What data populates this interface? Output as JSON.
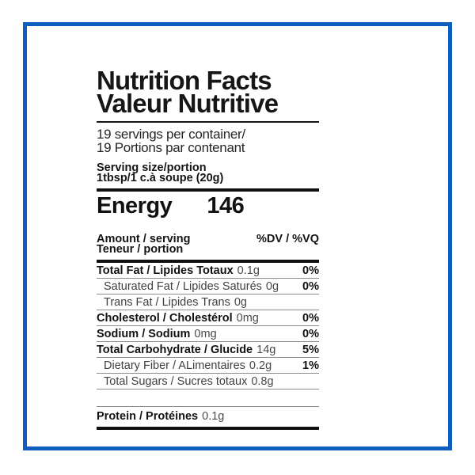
{
  "frame": {
    "border_color": "#0d5ebd"
  },
  "label": {
    "title_line1": "Nutrition Facts",
    "title_line2": "Valeur Nutritive",
    "servings_line1": "19 servings per container/",
    "servings_line2": "19 Portions par contenant",
    "serving_size_line1": "Serving size/portion",
    "serving_size_line2": "1tbsp/1 c.à soupe (20g)",
    "energy_label": "Energy",
    "energy_value": "146",
    "col_header_left_line1": "Amount / serving",
    "col_header_left_line2": "Teneur / portion",
    "col_header_right": "%DV / %VQ",
    "rows": [
      {
        "name": "Total Fat / Lipides Totaux",
        "value": "0.1g",
        "pct": "0%",
        "bold": true,
        "indent": false
      },
      {
        "name": "Saturated Fat / Lipides Saturés",
        "value": "0g",
        "pct": "0%",
        "bold": false,
        "indent": true
      },
      {
        "name": "Trans Fat / Lipides Trans",
        "value": "0g",
        "pct": "",
        "bold": false,
        "indent": true
      },
      {
        "name": "Cholesterol / Cholestérol",
        "value": "0mg",
        "pct": "0%",
        "bold": true,
        "indent": false
      },
      {
        "name": "Sodium / Sodium",
        "value": "0mg",
        "pct": "0%",
        "bold": true,
        "indent": false
      },
      {
        "name": "Total Carbohydrate / Glucide",
        "value": "14g",
        "pct": "5%",
        "bold": true,
        "indent": false
      },
      {
        "name": "Dietary Fiber / ALimentaires",
        "value": "0.2g",
        "pct": "1%",
        "bold": false,
        "indent": true
      },
      {
        "name": "Total Sugars / Sucres totaux",
        "value": "0.8g",
        "pct": "",
        "bold": false,
        "indent": true
      }
    ],
    "protein_row": {
      "name": "Protein / Protéines",
      "value": "0.1g"
    }
  }
}
